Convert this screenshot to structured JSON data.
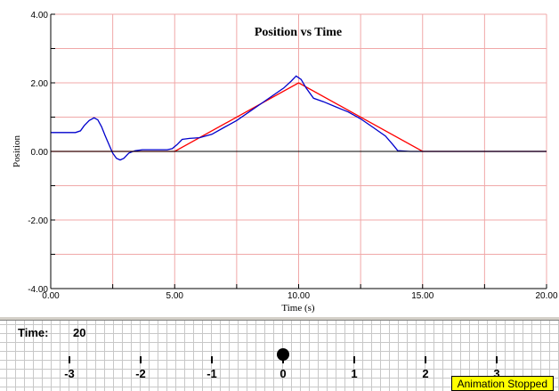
{
  "chart_data": {
    "type": "line",
    "title": "Position vs Time",
    "xlabel": "Time (s)",
    "ylabel": "Position",
    "xlim": [
      0,
      20
    ],
    "ylim": [
      -4,
      4
    ],
    "x_ticks": [
      "0.00",
      "5.00",
      "10.00",
      "15.00",
      "20.00"
    ],
    "y_ticks": [
      "4.00",
      "2.00",
      "0.00",
      "-2.00",
      "-4.00"
    ],
    "grid": true,
    "series": [
      {
        "color": "#ff0000",
        "points": [
          [
            0,
            0
          ],
          [
            5,
            0
          ],
          [
            10,
            2
          ],
          [
            15,
            0
          ],
          [
            20,
            0
          ]
        ]
      },
      {
        "color": "#0000cc",
        "points": [
          [
            0,
            0.55
          ],
          [
            1.0,
            0.55
          ],
          [
            1.2,
            0.6
          ],
          [
            1.35,
            0.75
          ],
          [
            1.55,
            0.9
          ],
          [
            1.75,
            0.98
          ],
          [
            1.9,
            0.92
          ],
          [
            2.05,
            0.72
          ],
          [
            2.2,
            0.45
          ],
          [
            2.35,
            0.2
          ],
          [
            2.5,
            -0.05
          ],
          [
            2.65,
            -0.2
          ],
          [
            2.8,
            -0.25
          ],
          [
            2.95,
            -0.2
          ],
          [
            3.15,
            -0.05
          ],
          [
            3.4,
            0.02
          ],
          [
            3.7,
            0.05
          ],
          [
            4.2,
            0.05
          ],
          [
            4.7,
            0.05
          ],
          [
            4.9,
            0.08
          ],
          [
            5.1,
            0.2
          ],
          [
            5.3,
            0.35
          ],
          [
            5.6,
            0.38
          ],
          [
            6.0,
            0.4
          ],
          [
            6.5,
            0.5
          ],
          [
            7.0,
            0.7
          ],
          [
            7.5,
            0.9
          ],
          [
            8.0,
            1.15
          ],
          [
            8.5,
            1.4
          ],
          [
            9.0,
            1.65
          ],
          [
            9.4,
            1.85
          ],
          [
            9.7,
            2.05
          ],
          [
            9.9,
            2.2
          ],
          [
            10.1,
            2.1
          ],
          [
            10.3,
            1.85
          ],
          [
            10.6,
            1.55
          ],
          [
            11.0,
            1.45
          ],
          [
            11.5,
            1.3
          ],
          [
            12.0,
            1.15
          ],
          [
            12.5,
            0.95
          ],
          [
            13.0,
            0.7
          ],
          [
            13.5,
            0.45
          ],
          [
            13.8,
            0.2
          ],
          [
            14.0,
            0.02
          ],
          [
            14.5,
            0.0
          ],
          [
            15.0,
            0.0
          ],
          [
            20.0,
            0.0
          ]
        ]
      },
      {
        "color": "#000000",
        "points": [
          [
            0,
            0
          ],
          [
            20,
            0
          ]
        ]
      }
    ]
  },
  "animation": {
    "time_label": "Time:",
    "time_value": "20",
    "axis_labels": [
      "-3",
      "-2",
      "-1",
      "0",
      "1",
      "2",
      "3"
    ],
    "ball_position": 0,
    "status": "Animation Stopped"
  }
}
